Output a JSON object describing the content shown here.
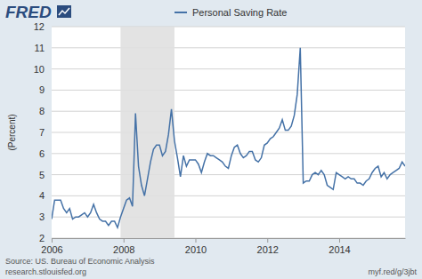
{
  "chart_data": {
    "type": "line",
    "logo": "FRED",
    "source": "Source: US. Bureau of Economic Analysis",
    "source_url": "research.stlouisfed.org",
    "short_url": "myf.red/g/3jbt",
    "y_label": "(Percent)",
    "legend": "top",
    "grid": true,
    "xlim": [
      2006,
      2015.833
    ],
    "xticks": [
      2006,
      2008,
      2010,
      2012,
      2014
    ],
    "ylim": [
      2,
      12
    ],
    "yticks": [
      2,
      3,
      4,
      5,
      6,
      7,
      8,
      9,
      10,
      11,
      12
    ],
    "recession": {
      "start": 2007.917,
      "end": 2009.417
    },
    "x": [
      2006,
      2006.083,
      2006.167,
      2006.25,
      2006.333,
      2006.417,
      2006.5,
      2006.583,
      2006.667,
      2006.75,
      2006.833,
      2006.917,
      2007,
      2007.083,
      2007.167,
      2007.25,
      2007.333,
      2007.417,
      2007.5,
      2007.583,
      2007.667,
      2007.75,
      2007.833,
      2007.917,
      2008,
      2008.083,
      2008.167,
      2008.25,
      2008.333,
      2008.417,
      2008.5,
      2008.583,
      2008.667,
      2008.75,
      2008.833,
      2008.917,
      2009,
      2009.083,
      2009.167,
      2009.25,
      2009.333,
      2009.417,
      2009.5,
      2009.583,
      2009.667,
      2009.75,
      2009.833,
      2009.917,
      2010,
      2010.083,
      2010.167,
      2010.25,
      2010.333,
      2010.417,
      2010.5,
      2010.583,
      2010.667,
      2010.75,
      2010.833,
      2010.917,
      2011,
      2011.083,
      2011.167,
      2011.25,
      2011.333,
      2011.417,
      2011.5,
      2011.583,
      2011.667,
      2011.75,
      2011.833,
      2011.917,
      2012,
      2012.083,
      2012.167,
      2012.25,
      2012.333,
      2012.417,
      2012.5,
      2012.583,
      2012.667,
      2012.75,
      2012.833,
      2012.917,
      2013,
      2013.083,
      2013.167,
      2013.25,
      2013.333,
      2013.417,
      2013.5,
      2013.583,
      2013.667,
      2013.75,
      2013.833,
      2013.917,
      2014,
      2014.083,
      2014.167,
      2014.25,
      2014.333,
      2014.417,
      2014.5,
      2014.583,
      2014.667,
      2014.75,
      2014.833,
      2014.917,
      2015,
      2015.083,
      2015.167,
      2015.25,
      2015.333,
      2015.417,
      2015.5,
      2015.583,
      2015.667,
      2015.75,
      2015.833
    ],
    "series": [
      {
        "name": "Personal Saving Rate",
        "color": "#4572a7",
        "values": [
          2.9,
          3.8,
          3.8,
          3.8,
          3.4,
          3.2,
          3.4,
          2.9,
          3.0,
          3.0,
          3.1,
          3.2,
          3.0,
          3.2,
          3.6,
          3.2,
          2.9,
          2.8,
          2.8,
          2.6,
          2.8,
          2.8,
          2.5,
          3.0,
          3.4,
          3.8,
          3.9,
          3.5,
          7.9,
          5.4,
          4.5,
          4.0,
          4.8,
          5.6,
          6.2,
          6.4,
          6.4,
          5.9,
          6.1,
          6.9,
          8.1,
          6.6,
          5.8,
          4.9,
          5.9,
          5.4,
          5.7,
          5.7,
          5.7,
          5.5,
          5.1,
          5.6,
          6.0,
          5.9,
          5.9,
          5.8,
          5.7,
          5.6,
          5.4,
          5.3,
          5.9,
          6.3,
          6.4,
          6.0,
          5.8,
          5.9,
          6.1,
          6.1,
          5.7,
          5.6,
          5.8,
          6.4,
          6.5,
          6.7,
          6.8,
          7.0,
          7.2,
          7.6,
          7.1,
          7.1,
          7.3,
          7.8,
          8.8,
          11.0,
          4.6,
          4.7,
          4.7,
          5.0,
          5.1,
          5.0,
          5.2,
          5.0,
          4.5,
          4.4,
          4.3,
          5.1,
          5.0,
          4.9,
          4.8,
          4.9,
          4.8,
          4.8,
          4.6,
          4.6,
          4.5,
          4.7,
          4.8,
          5.1,
          5.3,
          5.4,
          4.9,
          5.1,
          4.8,
          5.0,
          5.1,
          5.2,
          5.3,
          5.6,
          5.4
        ]
      }
    ]
  }
}
